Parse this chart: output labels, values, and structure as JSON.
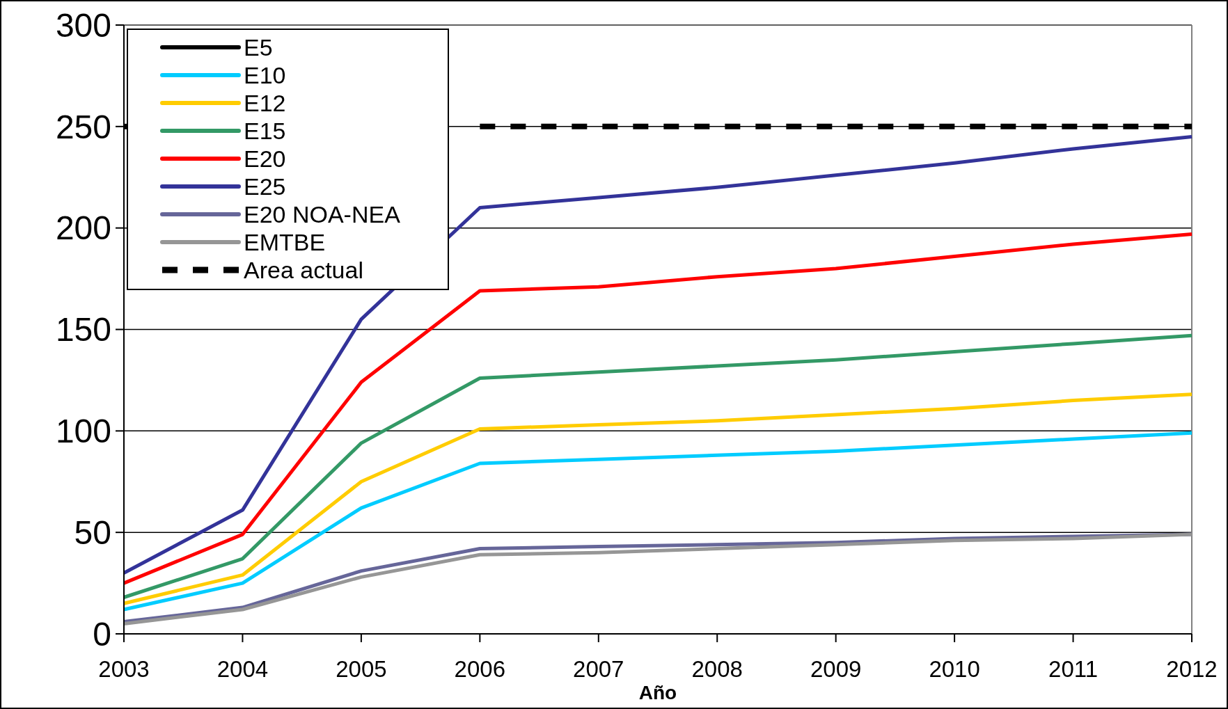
{
  "chart_data": {
    "type": "line",
    "xlabel": "Año",
    "x": [
      2003,
      2004,
      2005,
      2006,
      2007,
      2008,
      2009,
      2010,
      2011,
      2012
    ],
    "xlim": [
      2003,
      2012
    ],
    "xticks": [
      2003,
      2004,
      2005,
      2006,
      2007,
      2008,
      2009,
      2010,
      2011,
      2012
    ],
    "ylim": [
      0,
      300
    ],
    "yticks": [
      0,
      50,
      100,
      150,
      200,
      250,
      300
    ],
    "grid": "y",
    "legend": "top left",
    "series": [
      {
        "name": "E5",
        "color": "#000000",
        "values": [
          null,
          null,
          null,
          null,
          null,
          null,
          null,
          null,
          null,
          null
        ]
      },
      {
        "name": "E10",
        "color": "#00ccff",
        "values": [
          12,
          25,
          62,
          84,
          86,
          88,
          90,
          93,
          96,
          99
        ]
      },
      {
        "name": "E12",
        "color": "#ffcc00",
        "values": [
          15,
          29,
          75,
          101,
          103,
          105,
          108,
          111,
          115,
          118
        ]
      },
      {
        "name": "E15",
        "color": "#339966",
        "values": [
          18,
          37,
          94,
          126,
          129,
          132,
          135,
          139,
          143,
          147
        ]
      },
      {
        "name": "E20",
        "color": "#ff0000",
        "values": [
          25,
          49,
          124,
          169,
          171,
          176,
          180,
          186,
          192,
          197
        ]
      },
      {
        "name": "E25",
        "color": "#333399",
        "values": [
          30,
          61,
          155,
          210,
          215,
          220,
          226,
          232,
          239,
          245
        ]
      },
      {
        "name": "E20 NOA-NEA",
        "color": "#666699",
        "values": [
          6,
          13,
          31,
          42,
          43,
          44,
          45,
          47,
          48,
          49
        ]
      },
      {
        "name": "EMTBE",
        "color": "#969696",
        "values": [
          5,
          12,
          28,
          39,
          40,
          42,
          44,
          46,
          47,
          49
        ]
      },
      {
        "name": "Area actual",
        "color": "#000000",
        "line_style": "dashed",
        "values": [
          250,
          null,
          null,
          250,
          250,
          250,
          250,
          250,
          250,
          250
        ]
      }
    ]
  }
}
